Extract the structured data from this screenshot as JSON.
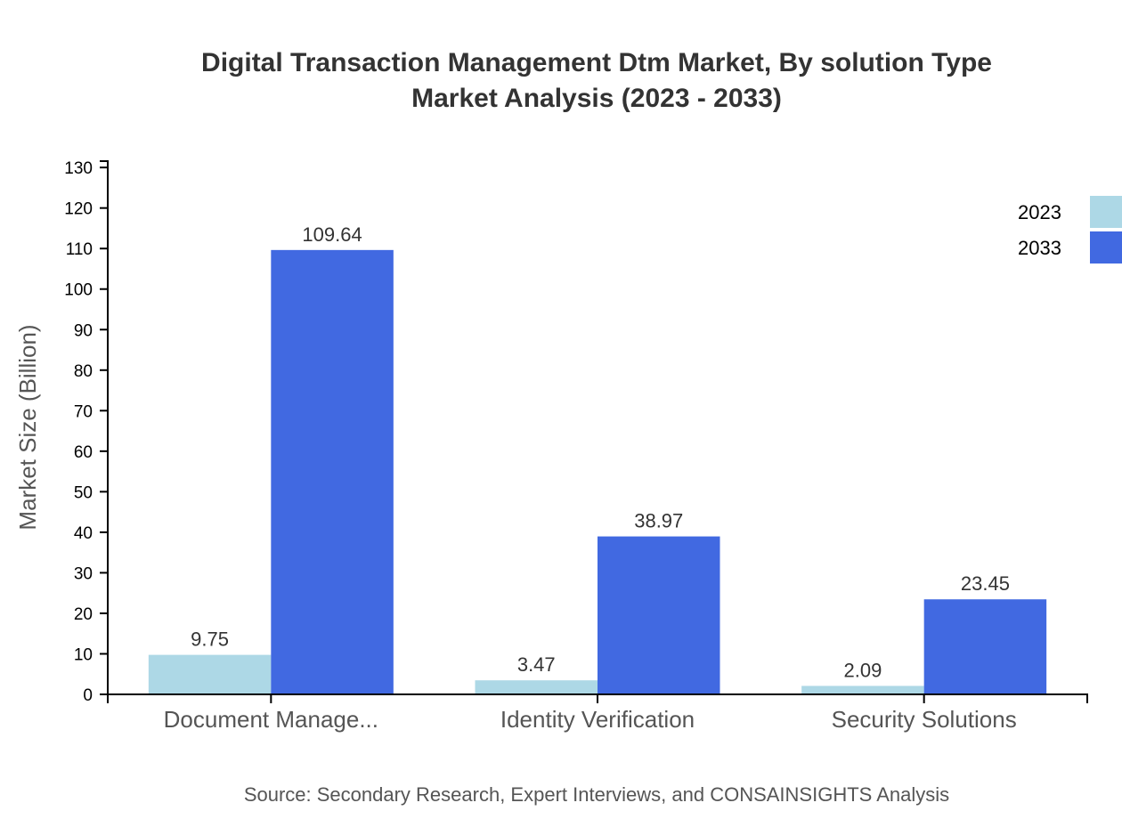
{
  "chart_data": {
    "type": "bar",
    "title": [
      "Digital Transaction Management Dtm Market, By solution Type",
      "Market Analysis (2023 - 2033)"
    ],
    "xlabel": "",
    "ylabel": "Market Size (Billion)",
    "ylim": [
      0,
      131.57
    ],
    "yticks": [
      0,
      10,
      20,
      30,
      40,
      50,
      60,
      70,
      80,
      90,
      100,
      110,
      120,
      130
    ],
    "categories": [
      "Document Manage...",
      "Identity Verification",
      "Security Solutions"
    ],
    "series": [
      {
        "name": "2023",
        "color": "#add8e6",
        "values": [
          9.75,
          3.47,
          2.09
        ]
      },
      {
        "name": "2033",
        "color": "#4169e1",
        "values": [
          109.64,
          38.97,
          23.45
        ]
      }
    ],
    "data_labels": true,
    "grid": false,
    "legend": "top-right",
    "source": "Source: Secondary Research, Expert Interviews, and CONSAINSIGHTS Analysis"
  }
}
